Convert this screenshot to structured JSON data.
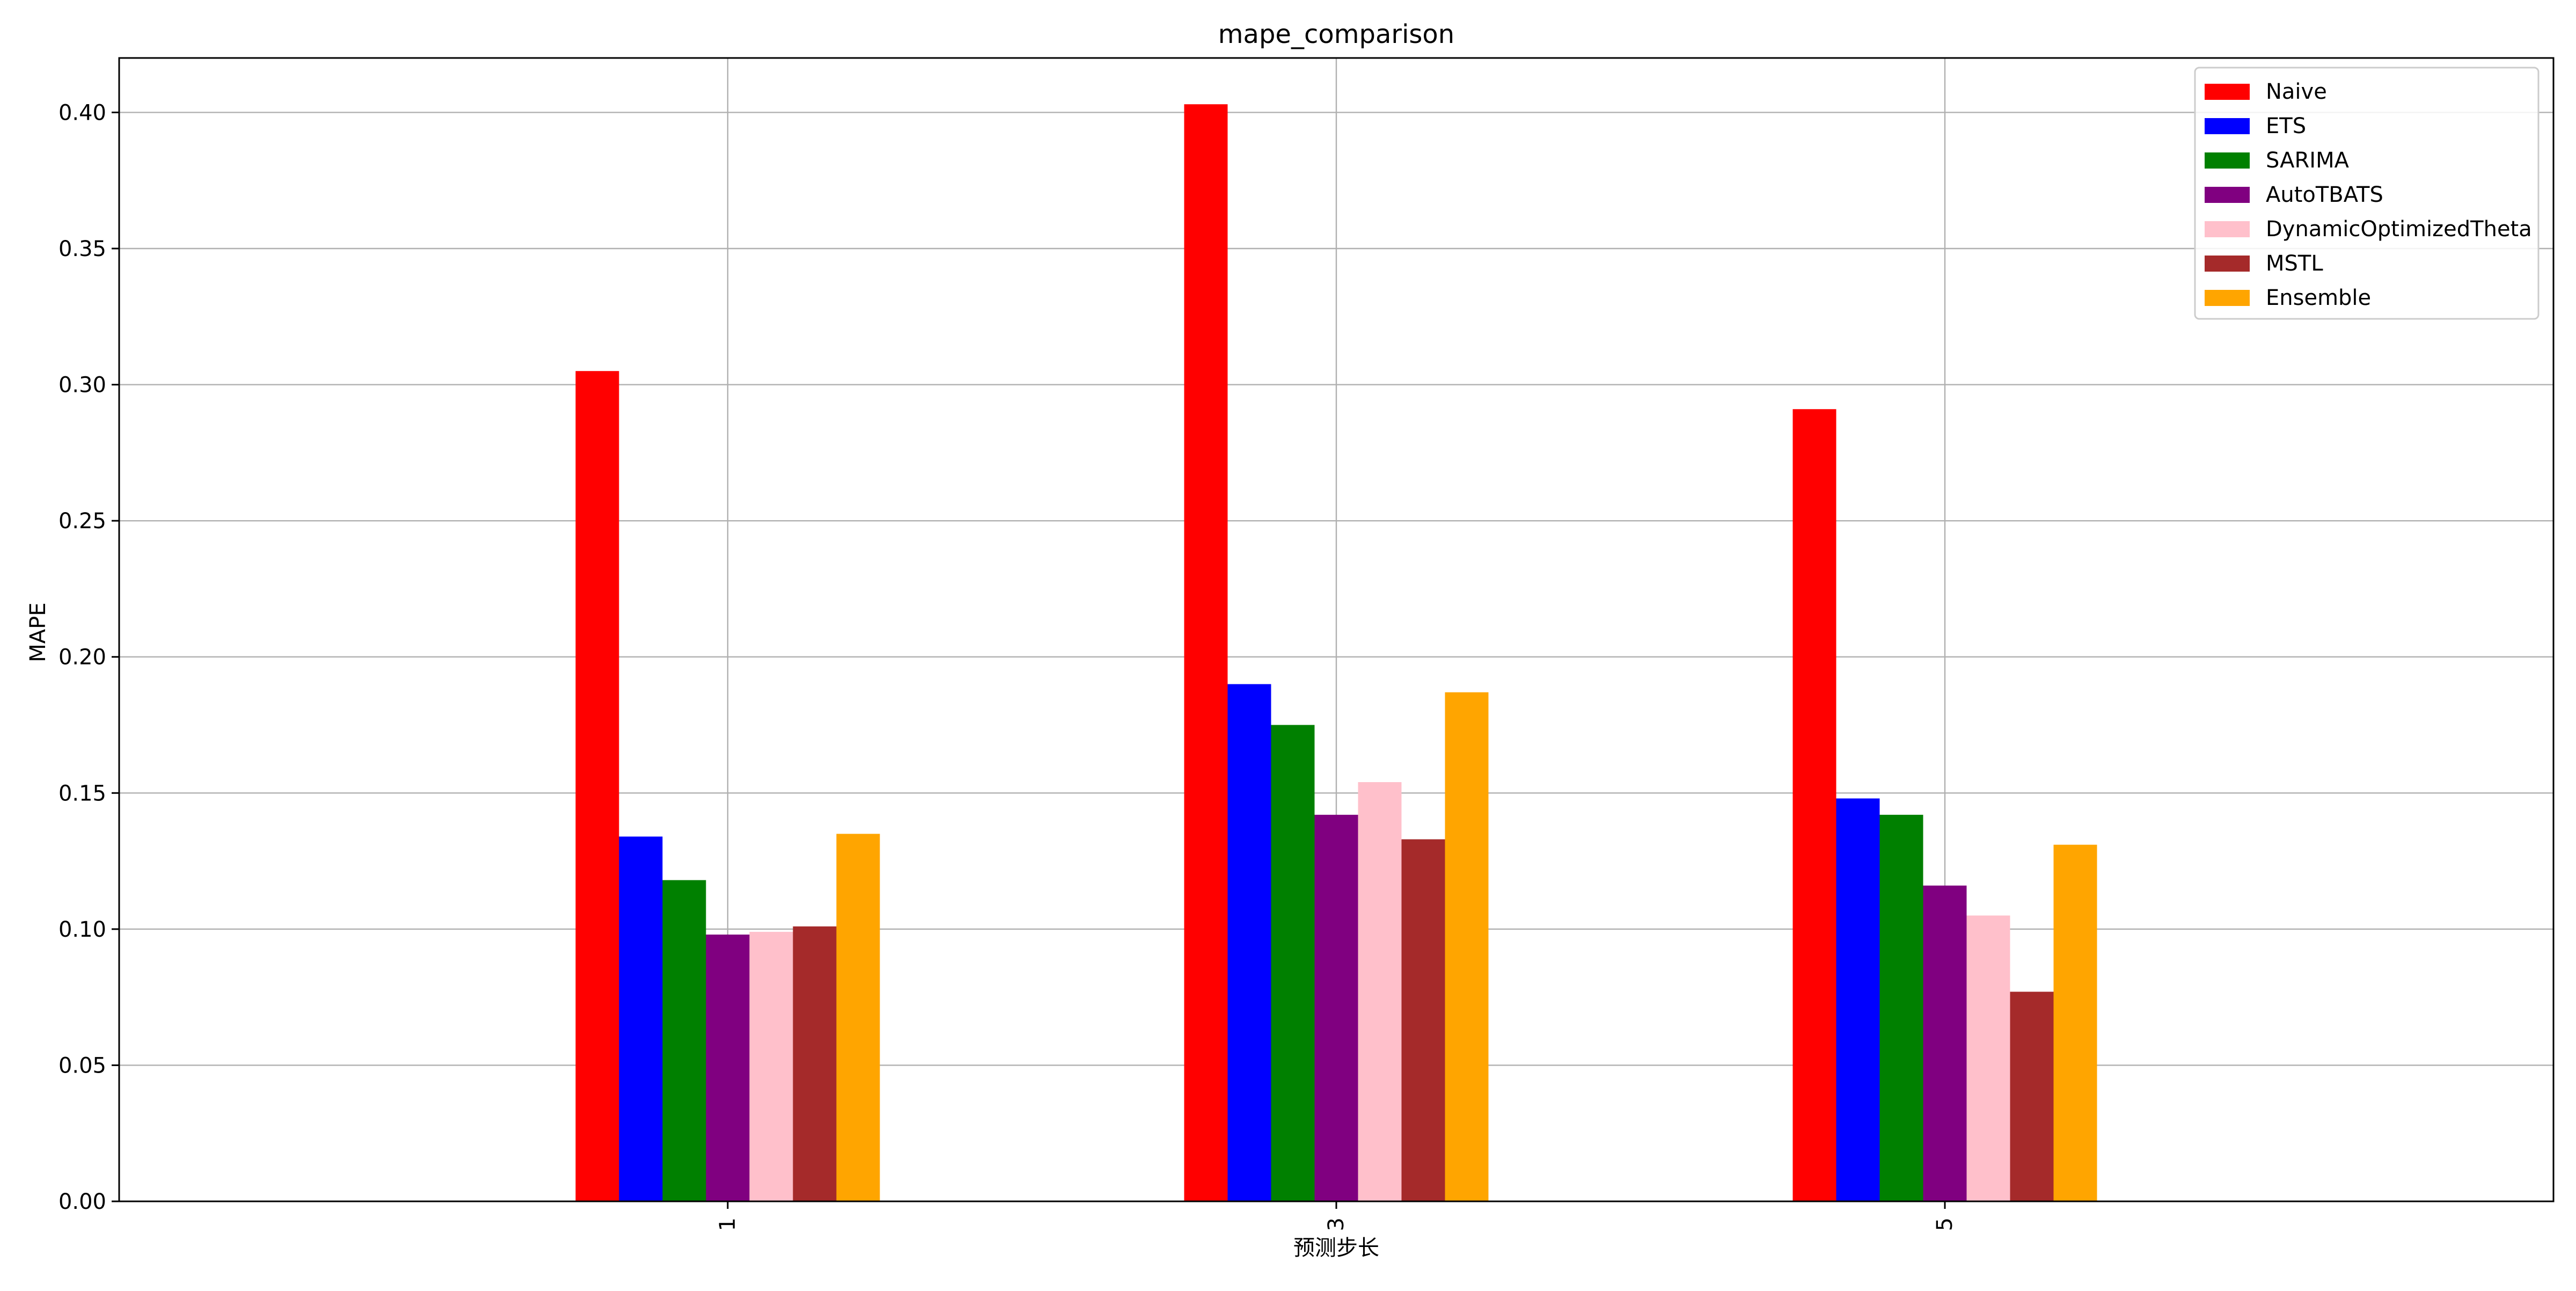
{
  "chart_data": {
    "type": "bar",
    "title": "mape_comparison",
    "xlabel": "预测步长",
    "ylabel": "MAPE",
    "categories": [
      "1",
      "3",
      "5"
    ],
    "ylim": [
      0,
      0.42
    ],
    "yticks": [
      "0.00",
      "0.05",
      "0.10",
      "0.15",
      "0.20",
      "0.25",
      "0.30",
      "0.35",
      "0.40"
    ],
    "grid": true,
    "legend_position": "top-right",
    "series": [
      {
        "name": "Naive",
        "color": "#ff0000",
        "values": [
          0.305,
          0.403,
          0.291
        ]
      },
      {
        "name": "ETS",
        "color": "#0000ff",
        "values": [
          0.134,
          0.19,
          0.148
        ]
      },
      {
        "name": "SARIMA",
        "color": "#008000",
        "values": [
          0.118,
          0.175,
          0.142
        ]
      },
      {
        "name": "AutoTBATS",
        "color": "#800080",
        "values": [
          0.098,
          0.142,
          0.116
        ]
      },
      {
        "name": "DynamicOptimizedTheta",
        "color": "#ffc0cb",
        "values": [
          0.099,
          0.154,
          0.105
        ]
      },
      {
        "name": "MSTL",
        "color": "#a52a2a",
        "values": [
          0.101,
          0.133,
          0.077
        ]
      },
      {
        "name": "Ensemble",
        "color": "#ffa500",
        "values": [
          0.135,
          0.187,
          0.131
        ]
      }
    ]
  }
}
